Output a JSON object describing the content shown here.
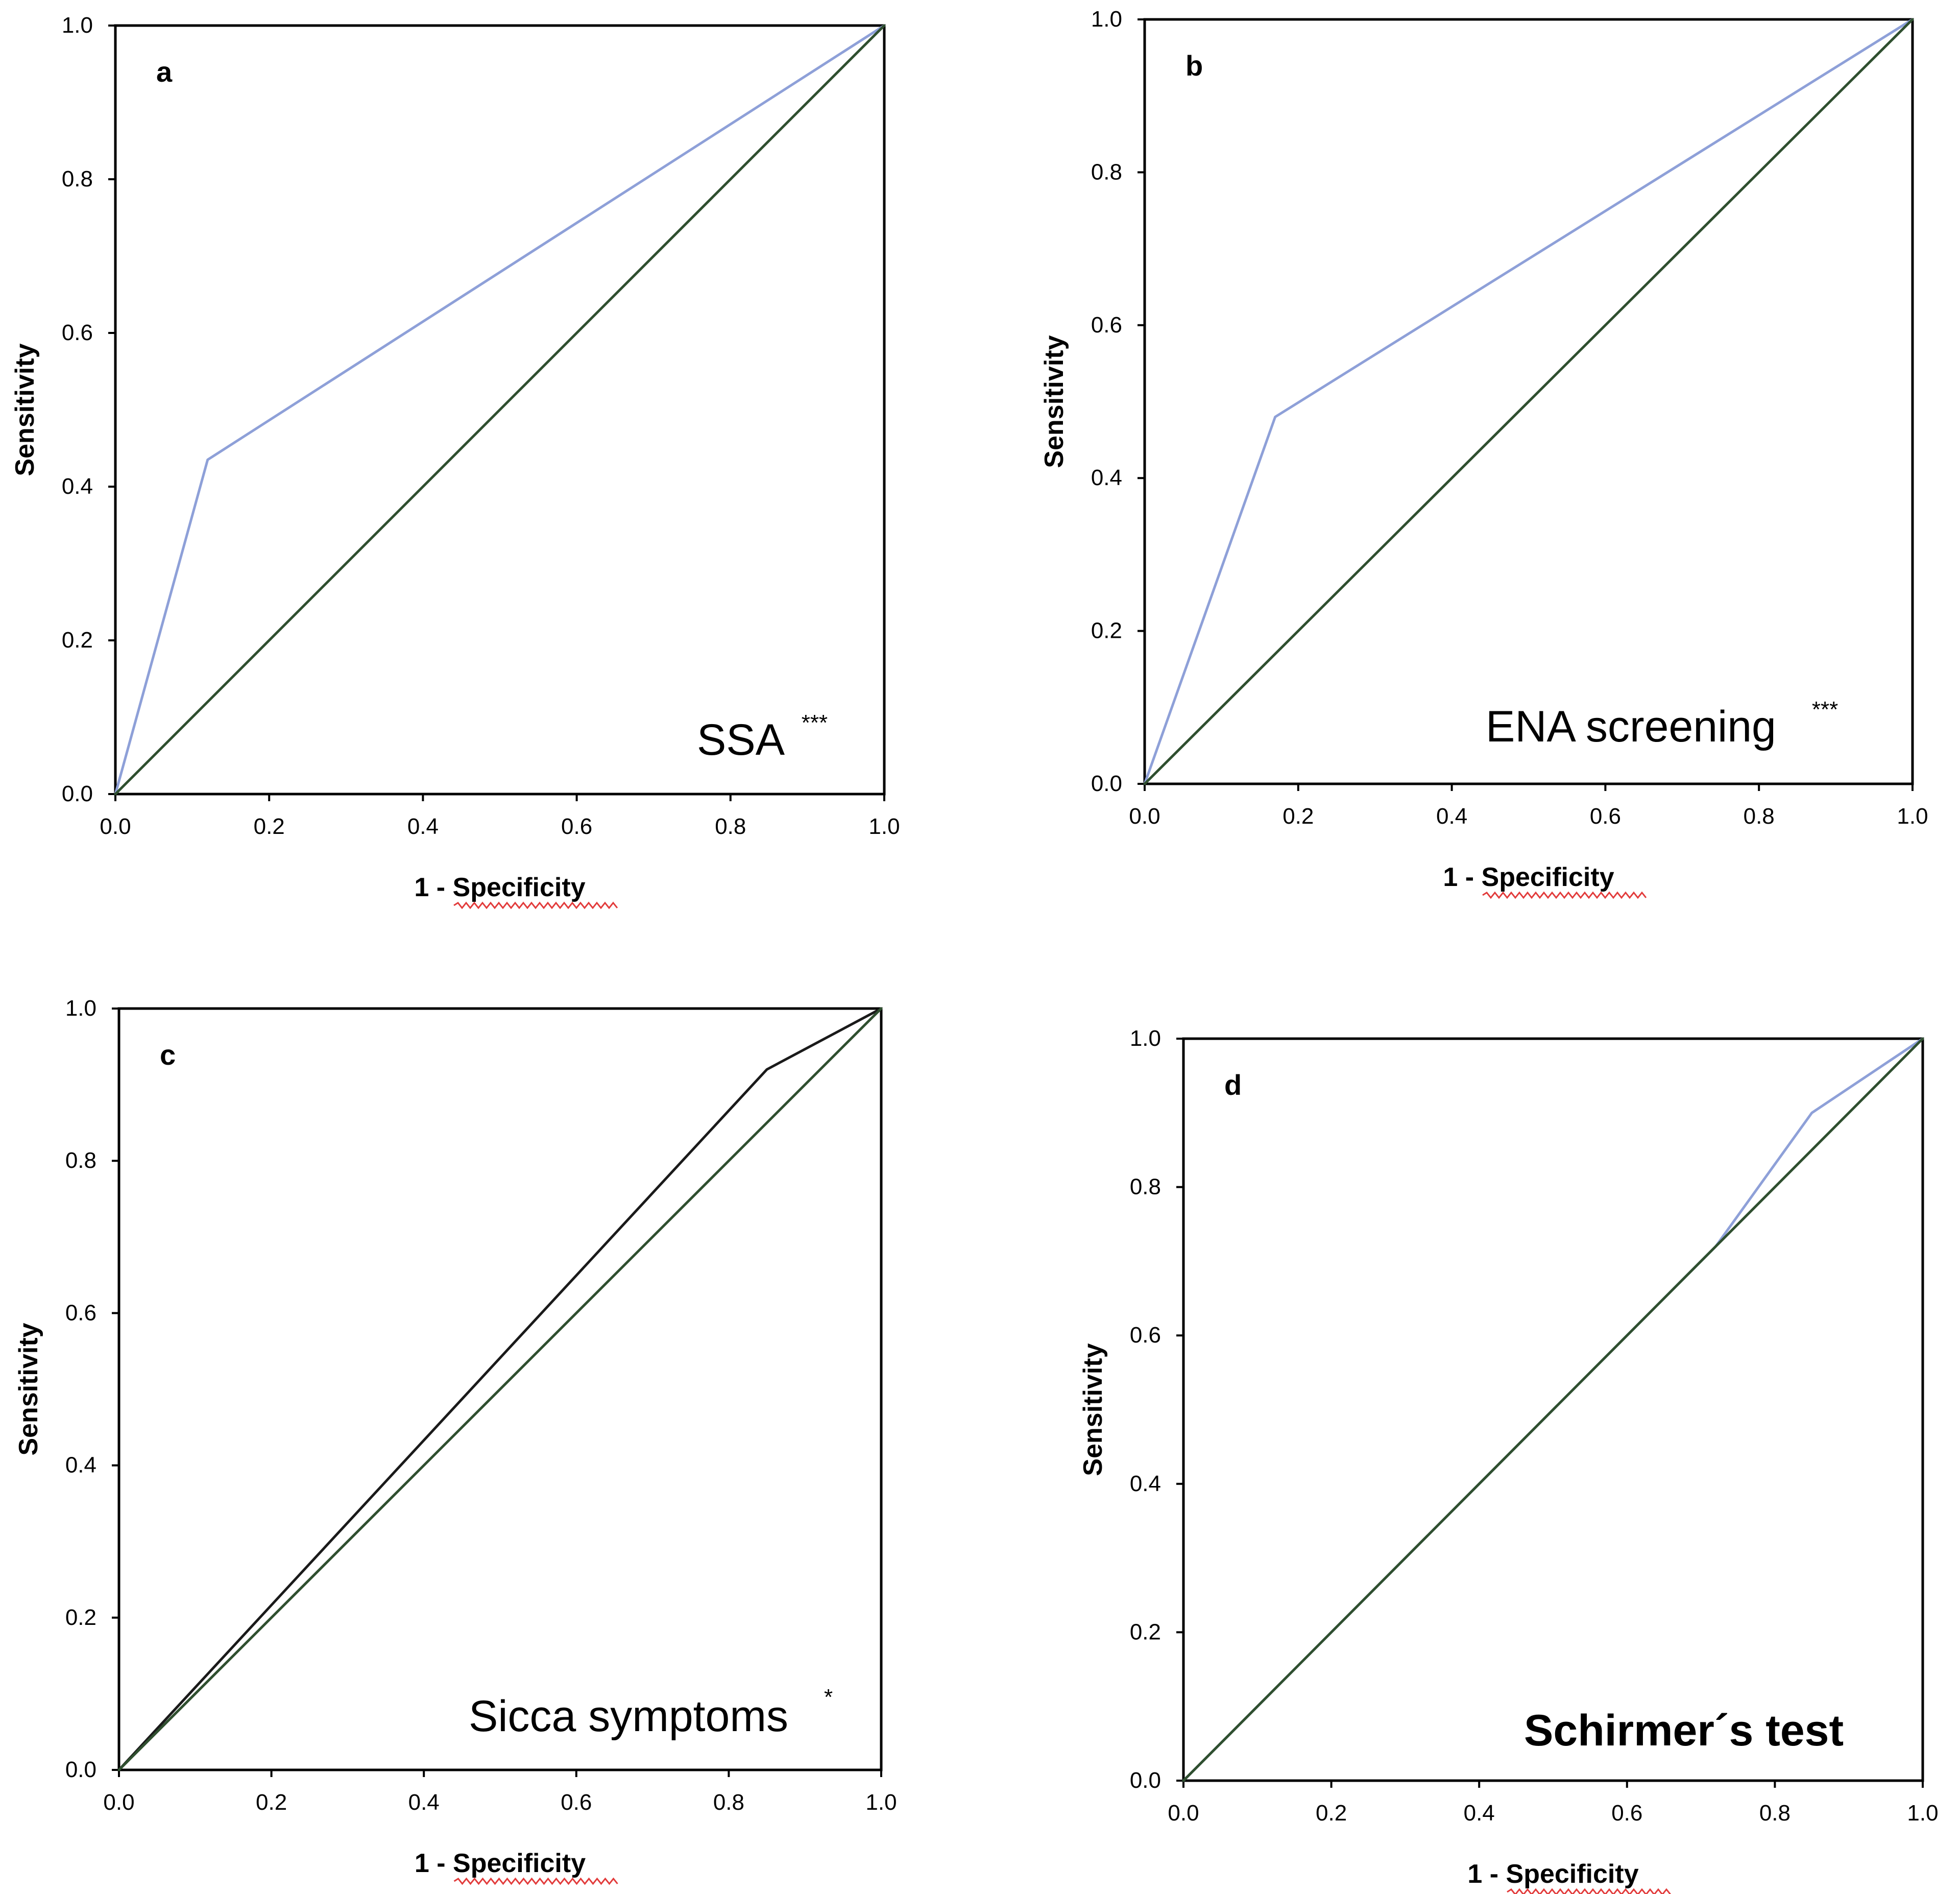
{
  "chart_data": [
    {
      "type": "line",
      "panel": "a",
      "annotation": "SSA",
      "significance": "***",
      "xlabel": "1 - Specificity",
      "ylabel": "Sensitivity",
      "xlim": [
        0,
        1
      ],
      "ylim": [
        0,
        1
      ],
      "xticks": [
        "0.0",
        "0.2",
        "0.4",
        "0.6",
        "0.8",
        "1.0"
      ],
      "yticks": [
        "0.0",
        "0.2",
        "0.4",
        "0.6",
        "0.8",
        "1.0"
      ],
      "series": [
        {
          "color": "#8ea0d8",
          "x": [
            0,
            0.12,
            1
          ],
          "y": [
            0,
            0.435,
            1
          ]
        },
        {
          "color": "#2f4f2f",
          "x": [
            0,
            1
          ],
          "y": [
            0,
            1
          ]
        }
      ]
    },
    {
      "type": "line",
      "panel": "b",
      "annotation": "ENA screening",
      "significance": "***",
      "xlabel": "1 - Specificity",
      "ylabel": "Sensitivity",
      "xlim": [
        0,
        1
      ],
      "ylim": [
        0,
        1
      ],
      "xticks": [
        "0.0",
        "0.2",
        "0.4",
        "0.6",
        "0.8",
        "1.0"
      ],
      "yticks": [
        "0.0",
        "0.2",
        "0.4",
        "0.6",
        "0.8",
        "1.0"
      ],
      "series": [
        {
          "color": "#8ea0d8",
          "x": [
            0,
            0.17,
            1
          ],
          "y": [
            0,
            0.48,
            1
          ]
        },
        {
          "color": "#2f4f2f",
          "x": [
            0,
            1
          ],
          "y": [
            0,
            1
          ]
        }
      ]
    },
    {
      "type": "line",
      "panel": "c",
      "annotation": "Sicca symptoms",
      "significance": "*",
      "xlabel": "1 - Specificity",
      "ylabel": "Sensitivity",
      "xlim": [
        0,
        1
      ],
      "ylim": [
        0,
        1
      ],
      "xticks": [
        "0.0",
        "0.2",
        "0.4",
        "0.6",
        "0.8",
        "1.0"
      ],
      "yticks": [
        "0.0",
        "0.2",
        "0.4",
        "0.6",
        "0.8",
        "1.0"
      ],
      "series": [
        {
          "color": "#1a1a1a",
          "x": [
            0,
            0.85,
            1
          ],
          "y": [
            0,
            0.92,
            1
          ]
        },
        {
          "color": "#2f4f2f",
          "x": [
            0,
            1
          ],
          "y": [
            0,
            1
          ]
        }
      ]
    },
    {
      "type": "line",
      "panel": "d",
      "annotation": "Schirmer´s test",
      "significance": "",
      "xlabel": "1 - Specificity",
      "ylabel": "Sensitivity",
      "xlim": [
        0,
        1
      ],
      "ylim": [
        0,
        1
      ],
      "xticks": [
        "0.0",
        "0.2",
        "0.4",
        "0.6",
        "0.8",
        "1.0"
      ],
      "yticks": [
        "0.0",
        "0.2",
        "0.4",
        "0.6",
        "0.8",
        "1.0"
      ],
      "series": [
        {
          "color": "#8ea0d8",
          "x": [
            0,
            0.72,
            0.85,
            1
          ],
          "y": [
            0,
            0.72,
            0.9,
            1
          ]
        },
        {
          "color": "#2f4f2f",
          "x": [
            0,
            1
          ],
          "y": [
            0,
            1
          ]
        }
      ]
    }
  ]
}
